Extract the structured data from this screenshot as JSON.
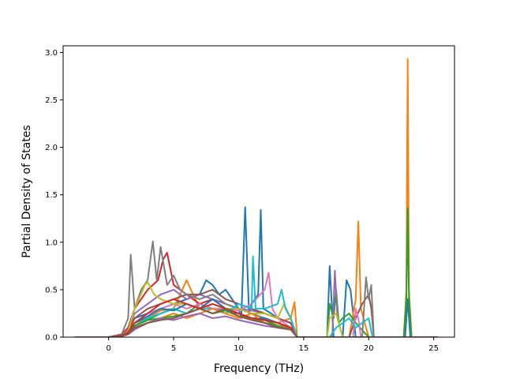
{
  "chart_data": {
    "type": "line",
    "title": "",
    "xlabel": "Frequency (THz)",
    "ylabel": "Partial Density of States",
    "xlim": [
      -3.5,
      26.6
    ],
    "ylim": [
      0,
      3.07
    ],
    "xticks": [
      0,
      5,
      10,
      15,
      20,
      25
    ],
    "yticks": [
      0.0,
      0.5,
      1.0,
      1.5,
      2.0,
      2.5,
      3.0
    ],
    "xtick_labels": [
      "0",
      "5",
      "10",
      "15",
      "20",
      "25"
    ],
    "ytick_labels": [
      "0.0",
      "0.5",
      "1.0",
      "1.5",
      "2.0",
      "2.5",
      "3.0"
    ],
    "grid": false,
    "legend": "none",
    "series": [
      {
        "color": "#1f77b4",
        "x": [
          -2.6,
          0,
          1.0,
          1.5,
          2,
          3,
          4,
          5,
          6,
          7,
          7.5,
          8,
          8.5,
          9,
          9.5,
          10,
          10.2,
          10.5,
          10.8,
          11,
          11.5,
          11.7,
          11.9,
          12.5,
          13,
          14,
          14.5,
          15,
          16,
          16.8,
          17,
          17.3,
          18,
          18.3,
          18.6,
          19,
          20,
          22.8,
          23,
          23.2,
          25.3
        ],
        "y": [
          0,
          0,
          0.03,
          0.08,
          0.2,
          0.25,
          0.3,
          0.35,
          0.4,
          0.45,
          0.6,
          0.55,
          0.45,
          0.5,
          0.4,
          0.3,
          0.2,
          1.37,
          0.25,
          0.35,
          0.45,
          1.34,
          0.3,
          0.25,
          0.2,
          0.15,
          0,
          0,
          0,
          0,
          0.75,
          0,
          0,
          0.6,
          0.5,
          0,
          0,
          0,
          0.4,
          0,
          0
        ]
      },
      {
        "color": "#ff7f0e",
        "x": [
          -2.6,
          0,
          1.0,
          1.5,
          2,
          3,
          4,
          5,
          6,
          7,
          8,
          9,
          10,
          11,
          12,
          13,
          14,
          14.3,
          14.5,
          15,
          18.5,
          19,
          19.2,
          19.4,
          20,
          22.7,
          22.9,
          23,
          23.1,
          23.3,
          25.3
        ],
        "y": [
          0,
          0,
          0.02,
          0.06,
          0.15,
          0.2,
          0.28,
          0.3,
          0.6,
          0.3,
          0.4,
          0.35,
          0.3,
          0.25,
          0.2,
          0.15,
          0.2,
          0.37,
          0,
          0,
          0,
          0.4,
          1.22,
          0.3,
          0,
          0,
          0.5,
          2.93,
          0.5,
          0,
          0
        ]
      },
      {
        "color": "#2ca02c",
        "x": [
          -2.6,
          0,
          1.0,
          1.5,
          2,
          3,
          4,
          5,
          6,
          7,
          8,
          9,
          10,
          11,
          12,
          13,
          14,
          14.5,
          16.8,
          17,
          17.3,
          17.5,
          17.7,
          18,
          18.5,
          19,
          20,
          22.7,
          22.9,
          23,
          23.1,
          23.3,
          25.3
        ],
        "y": [
          0,
          0,
          0.02,
          0.05,
          0.12,
          0.18,
          0.25,
          0.3,
          0.25,
          0.35,
          0.3,
          0.28,
          0.25,
          0.2,
          0.18,
          0.12,
          0.1,
          0,
          0,
          0.35,
          0.2,
          0.5,
          0.15,
          0.2,
          0.25,
          0.15,
          0,
          0,
          0.4,
          1.36,
          0.4,
          0,
          0
        ]
      },
      {
        "color": "#d62728",
        "x": [
          -2.6,
          0,
          1.0,
          1.5,
          2,
          3,
          3.8,
          4.2,
          4.5,
          5,
          5.5,
          6,
          7,
          8,
          9,
          10,
          11,
          12,
          13,
          14,
          14.5,
          15,
          25.3
        ],
        "y": [
          0,
          0,
          0.03,
          0.1,
          0.3,
          0.5,
          0.6,
          0.82,
          0.89,
          0.55,
          0.5,
          0.45,
          0.35,
          0.4,
          0.3,
          0.25,
          0.2,
          0.2,
          0.15,
          0.1,
          0,
          0,
          0
        ]
      },
      {
        "color": "#9467bd",
        "x": [
          -2.6,
          0,
          1.0,
          1.5,
          2,
          3,
          4,
          5,
          6,
          7,
          8,
          9,
          10,
          11,
          12,
          13,
          14,
          14.5,
          17.2,
          17.4,
          17.6,
          18,
          20,
          25.3
        ],
        "y": [
          0,
          0,
          0.02,
          0.08,
          0.25,
          0.35,
          0.45,
          0.5,
          0.4,
          0.45,
          0.4,
          0.35,
          0.3,
          0.28,
          0.25,
          0.2,
          0.15,
          0,
          0,
          0.7,
          0.2,
          0,
          0,
          0
        ]
      },
      {
        "color": "#8c564b",
        "x": [
          -2.6,
          0,
          1.0,
          1.5,
          2,
          3,
          4,
          5,
          6,
          7,
          8,
          9,
          10,
          11,
          12,
          13,
          14,
          14.5,
          18.5,
          19,
          19.5,
          20,
          20.2,
          20.4,
          25.3
        ],
        "y": [
          0,
          0,
          0.02,
          0.06,
          0.2,
          0.3,
          0.35,
          0.4,
          0.45,
          0.45,
          0.5,
          0.4,
          0.35,
          0.3,
          0.25,
          0.2,
          0.15,
          0,
          0,
          0.2,
          0.35,
          0.45,
          0.3,
          0,
          0
        ]
      },
      {
        "color": "#e377c2",
        "x": [
          -2.6,
          0,
          1.0,
          1.5,
          2,
          3,
          4,
          5,
          6,
          7,
          8,
          9,
          10,
          11,
          12,
          12.3,
          12.6,
          13,
          14,
          14.5,
          18.8,
          19,
          19.2,
          19.4,
          25.3
        ],
        "y": [
          0,
          0,
          0.02,
          0.05,
          0.15,
          0.25,
          0.3,
          0.35,
          0.3,
          0.35,
          0.3,
          0.3,
          0.28,
          0.35,
          0.5,
          0.68,
          0.3,
          0.2,
          0.1,
          0,
          0,
          0.3,
          0.2,
          0,
          0
        ]
      },
      {
        "color": "#7f7f7f",
        "x": [
          -2.6,
          0,
          1.0,
          1.5,
          1.7,
          2,
          2.5,
          3,
          3.4,
          3.7,
          4,
          4.5,
          5,
          5.5,
          6,
          7,
          8,
          9,
          10,
          11,
          12,
          13,
          14,
          14.5,
          19.5,
          19.8,
          20,
          20.2,
          20.4,
          25.3
        ],
        "y": [
          0,
          0,
          0.03,
          0.2,
          0.87,
          0.3,
          0.5,
          0.6,
          1.01,
          0.6,
          0.95,
          0.55,
          0.65,
          0.5,
          0.45,
          0.4,
          0.45,
          0.35,
          0.3,
          0.25,
          0.2,
          0.15,
          0.1,
          0,
          0,
          0.63,
          0.4,
          0.55,
          0,
          0
        ]
      },
      {
        "color": "#bcbd22",
        "x": [
          -2.6,
          0,
          1.0,
          1.5,
          2,
          2.8,
          3,
          3.5,
          4,
          5,
          6,
          7,
          8,
          9,
          10,
          11,
          12,
          13,
          13.5,
          14,
          14.5,
          16.8,
          17,
          17.5,
          18,
          25.3
        ],
        "y": [
          0,
          0,
          0.02,
          0.06,
          0.3,
          0.55,
          0.58,
          0.45,
          0.4,
          0.35,
          0.35,
          0.3,
          0.35,
          0.3,
          0.3,
          0.25,
          0.25,
          0.2,
          0.35,
          0.2,
          0,
          0,
          0.2,
          0.25,
          0,
          0
        ]
      },
      {
        "color": "#17becf",
        "x": [
          -2.6,
          0,
          1.0,
          1.5,
          2,
          3,
          4,
          5,
          6,
          7,
          8,
          9,
          10,
          11,
          11.1,
          11.3,
          12,
          13,
          13.3,
          13.6,
          14,
          14.5,
          17,
          17.5,
          18,
          18.5,
          19,
          19.5,
          20,
          20.3,
          25.3
        ],
        "y": [
          0,
          0,
          0.02,
          0.05,
          0.12,
          0.2,
          0.25,
          0.3,
          0.25,
          0.3,
          0.3,
          0.25,
          0.35,
          0.3,
          0.85,
          0.3,
          0.3,
          0.35,
          0.5,
          0.3,
          0.2,
          0,
          0,
          0.1,
          0.15,
          0.2,
          0.1,
          0.15,
          0.2,
          0,
          0
        ]
      },
      {
        "color": "#1f77b4",
        "x": [
          -2.6,
          0,
          1.0,
          1.5,
          2,
          3,
          4,
          5,
          6,
          7,
          8,
          9,
          10,
          11,
          12,
          13,
          14,
          14.5,
          15,
          25.3
        ],
        "y": [
          0,
          0,
          0.02,
          0.05,
          0.15,
          0.22,
          0.3,
          0.28,
          0.35,
          0.3,
          0.4,
          0.3,
          0.25,
          0.2,
          0.2,
          0.15,
          0.1,
          0,
          0,
          0
        ]
      },
      {
        "color": "#ff7f0e",
        "x": [
          -2.6,
          0,
          1.0,
          1.5,
          2,
          3,
          4,
          5,
          6,
          7,
          8,
          9,
          10,
          11,
          12,
          13,
          14,
          14.5,
          15,
          25.3
        ],
        "y": [
          0,
          0,
          0.02,
          0.04,
          0.1,
          0.15,
          0.2,
          0.25,
          0.2,
          0.25,
          0.3,
          0.25,
          0.2,
          0.25,
          0.15,
          0.12,
          0.1,
          0,
          0,
          0
        ]
      },
      {
        "color": "#2ca02c",
        "x": [
          -2.6,
          0,
          1.0,
          1.5,
          2,
          3,
          4,
          5,
          6,
          7,
          8,
          9,
          10,
          11,
          12,
          13,
          14,
          14.5,
          15,
          25.3
        ],
        "y": [
          0,
          0,
          0.02,
          0.04,
          0.12,
          0.18,
          0.2,
          0.22,
          0.25,
          0.3,
          0.25,
          0.28,
          0.22,
          0.2,
          0.15,
          0.12,
          0.08,
          0,
          0,
          0
        ]
      },
      {
        "color": "#d62728",
        "x": [
          -2.6,
          0,
          1.0,
          1.5,
          2,
          3,
          4,
          5,
          6,
          7,
          8,
          9,
          10,
          11,
          12,
          13,
          14,
          14.5,
          15,
          25.3
        ],
        "y": [
          0,
          0,
          0.02,
          0.05,
          0.15,
          0.25,
          0.35,
          0.4,
          0.35,
          0.3,
          0.35,
          0.3,
          0.25,
          0.2,
          0.18,
          0.15,
          0.1,
          0,
          0,
          0
        ]
      },
      {
        "color": "#9467bd",
        "x": [
          -2.6,
          0,
          1.0,
          1.5,
          2,
          3,
          4,
          5,
          6,
          7,
          8,
          9,
          10,
          11,
          12,
          13,
          14,
          14.5,
          15,
          25.3
        ],
        "y": [
          0,
          0,
          0.01,
          0.03,
          0.08,
          0.15,
          0.2,
          0.18,
          0.22,
          0.25,
          0.2,
          0.22,
          0.18,
          0.15,
          0.12,
          0.1,
          0.08,
          0,
          0,
          0
        ]
      },
      {
        "color": "#8c564b",
        "x": [
          -2.6,
          0,
          1.0,
          1.5,
          2,
          3,
          4,
          5,
          6,
          7,
          8,
          9,
          10,
          11,
          12,
          13,
          14,
          14.5,
          15,
          25.3
        ],
        "y": [
          0,
          0,
          0.01,
          0.03,
          0.1,
          0.15,
          0.18,
          0.2,
          0.25,
          0.3,
          0.25,
          0.3,
          0.22,
          0.18,
          0.15,
          0.1,
          0.08,
          0,
          0,
          0
        ]
      }
    ]
  }
}
